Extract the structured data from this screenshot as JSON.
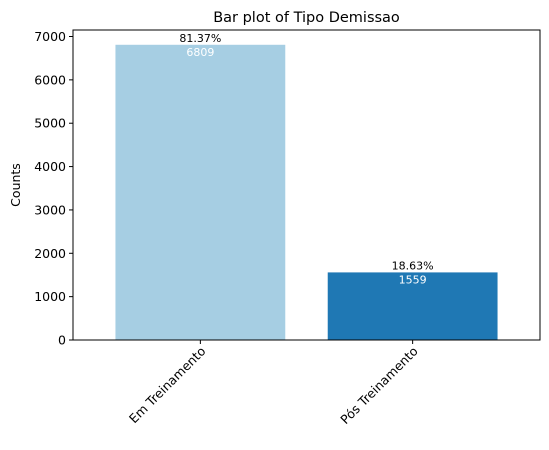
{
  "chart_data": {
    "type": "bar",
    "title": "Bar plot of Tipo Demissao",
    "xlabel": "",
    "ylabel": "Counts",
    "categories": [
      "Em Treinamento",
      "Pós Treinamento"
    ],
    "values": [
      6809,
      1559
    ],
    "percent_labels": [
      "81.37%",
      "18.63%"
    ],
    "count_labels": [
      "6809",
      "1559"
    ],
    "colors": [
      "#a6cee3",
      "#1f78b4"
    ],
    "ylim": [
      0,
      7150
    ],
    "yticks": [
      0,
      1000,
      2000,
      3000,
      4000,
      5000,
      6000,
      7000
    ],
    "ytick_labels": [
      "0",
      "1000",
      "2000",
      "3000",
      "4000",
      "5000",
      "6000",
      "7000"
    ],
    "grid": false,
    "xtick_rotation": 45
  }
}
